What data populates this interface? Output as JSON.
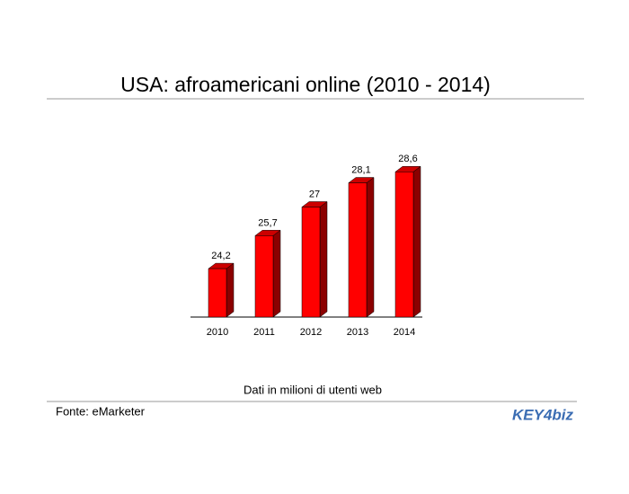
{
  "chart_data": {
    "type": "bar3d",
    "title": "USA: afroamericani online (2010 - 2014)",
    "categories": [
      "2010",
      "2011",
      "2012",
      "2013",
      "2014"
    ],
    "values": [
      24.2,
      25.7,
      27,
      28.1,
      28.6
    ],
    "value_labels": [
      "24,2",
      "25,7",
      "27",
      "28,1",
      "28,6"
    ],
    "color": "#ff0000",
    "ylim": [
      22,
      29
    ],
    "note": "Dati in milioni di utenti web",
    "source": "Fonte: eMarketer",
    "logo": "KEY4biz"
  }
}
